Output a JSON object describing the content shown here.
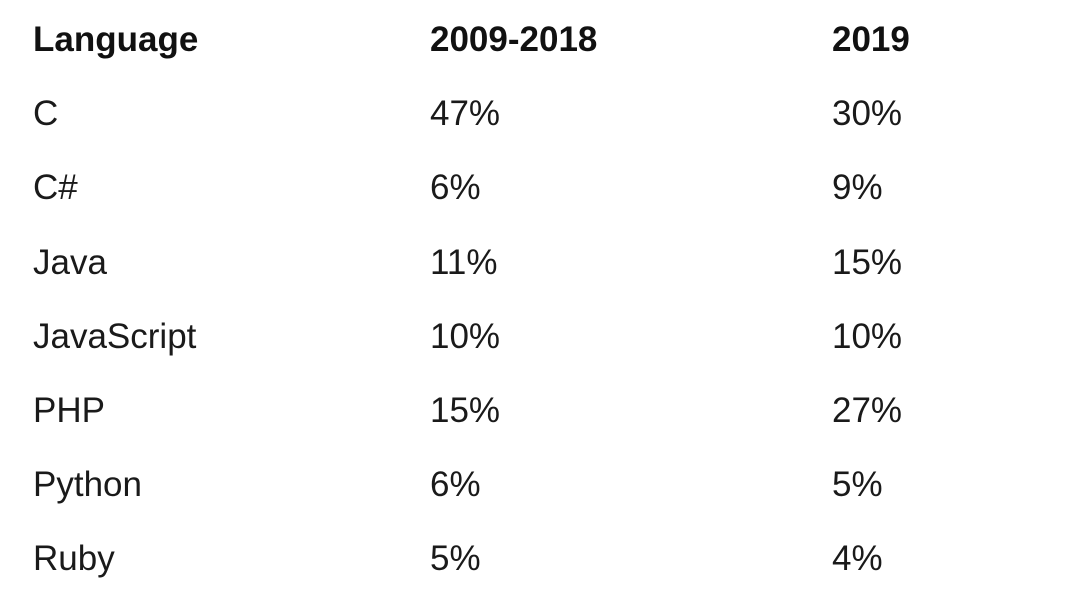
{
  "table": {
    "header": [
      "Language",
      "2009-2018",
      "2019"
    ],
    "rows": [
      [
        "C",
        "47%",
        "30%"
      ],
      [
        "C#",
        "6%",
        "9%"
      ],
      [
        "Java",
        "11%",
        "15%"
      ],
      [
        "JavaScript",
        "10%",
        "10%"
      ],
      [
        "PHP",
        "15%",
        "27%"
      ],
      [
        "Python",
        "6%",
        "5%"
      ],
      [
        "Ruby",
        "5%",
        "4%"
      ]
    ]
  }
}
